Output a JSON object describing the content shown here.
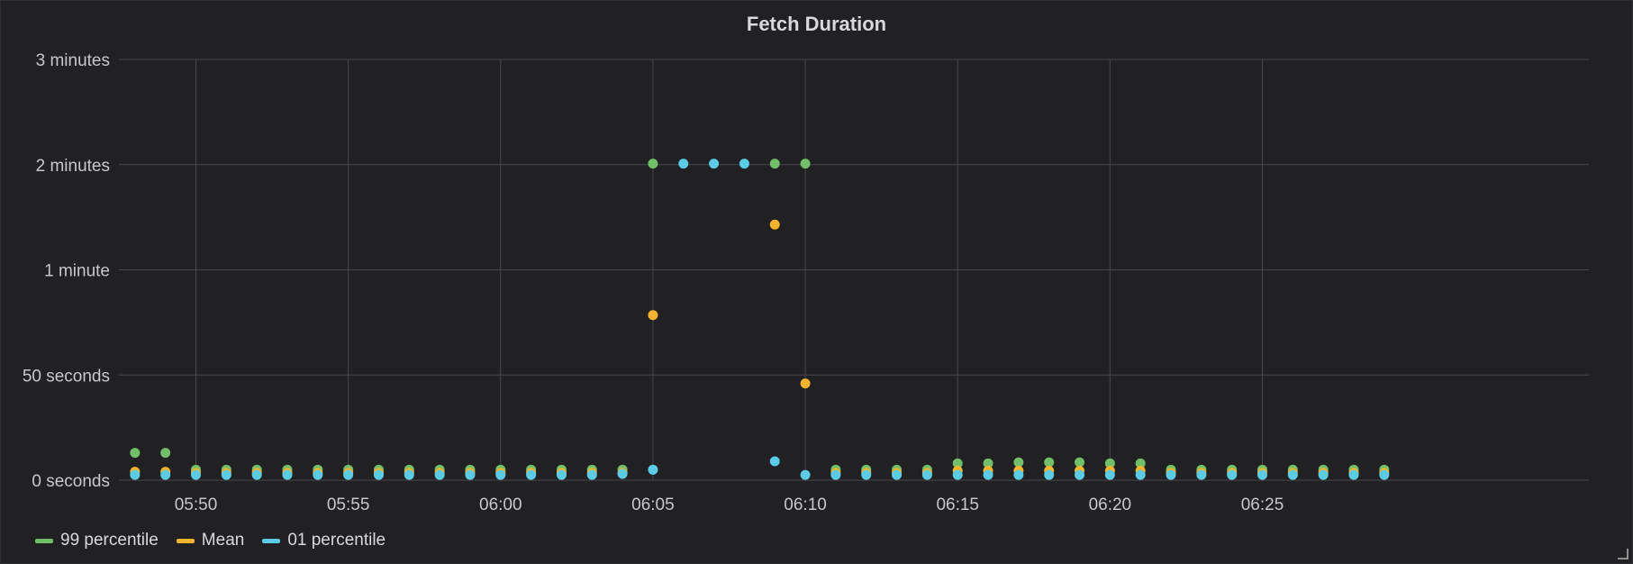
{
  "panel": {
    "title": "Fetch Duration"
  },
  "chart_data": {
    "type": "scatter",
    "title": "Fetch Duration",
    "xlabel": "",
    "ylabel": "",
    "x_tick_labels": [
      "05:50",
      "05:55",
      "06:00",
      "06:05",
      "06:10",
      "06:15",
      "06:20",
      "06:25"
    ],
    "y_tick_labels": [
      "0 seconds",
      "50 seconds",
      "1 minute",
      "2 minutes",
      "3 minutes"
    ],
    "ylim_ticks": [
      0,
      4
    ],
    "grid": true,
    "legend_position": "bottom-left",
    "x": [
      "05:48",
      "05:49",
      "05:50",
      "05:51",
      "05:52",
      "05:53",
      "05:54",
      "05:55",
      "05:56",
      "05:57",
      "05:58",
      "05:59",
      "06:00",
      "06:01",
      "06:02",
      "06:03",
      "06:04",
      "06:05",
      "06:06",
      "06:07",
      "06:08",
      "06:09",
      "06:10",
      "06:11",
      "06:12",
      "06:13",
      "06:14",
      "06:15",
      "06:16",
      "06:17",
      "06:18",
      "06:19",
      "06:20",
      "06:21",
      "06:22",
      "06:23",
      "06:24",
      "06:25",
      "06:26",
      "06:27",
      "06:28",
      "06:29"
    ],
    "series": [
      {
        "name": "99 percentile",
        "color": "#73bf69",
        "values": [
          0.26,
          0.26,
          0.1,
          0.1,
          0.1,
          0.1,
          0.1,
          0.1,
          0.1,
          0.1,
          0.1,
          0.1,
          0.1,
          0.1,
          0.1,
          0.1,
          0.1,
          3.01,
          null,
          null,
          null,
          3.01,
          3.01,
          0.1,
          0.1,
          0.1,
          0.1,
          0.16,
          0.16,
          0.17,
          0.17,
          0.17,
          0.16,
          0.16,
          0.1,
          0.1,
          0.1,
          0.1,
          0.1,
          0.1,
          0.1,
          0.1
        ]
      },
      {
        "name": "Mean",
        "color": "#f2b42f",
        "values": [
          0.08,
          0.08,
          0.07,
          0.07,
          0.07,
          0.07,
          0.07,
          0.07,
          0.07,
          0.07,
          0.07,
          0.07,
          0.07,
          0.07,
          0.07,
          0.07,
          0.07,
          1.57,
          null,
          null,
          null,
          2.43,
          0.92,
          0.07,
          0.07,
          0.07,
          0.07,
          0.09,
          0.09,
          0.09,
          0.09,
          0.09,
          0.09,
          0.09,
          0.07,
          0.07,
          0.07,
          0.07,
          0.07,
          0.07,
          0.07,
          0.07
        ]
      },
      {
        "name": "01 percentile",
        "color": "#5bcbe6",
        "values": [
          0.05,
          0.05,
          0.05,
          0.05,
          0.05,
          0.05,
          0.05,
          0.05,
          0.05,
          0.05,
          0.05,
          0.05,
          0.05,
          0.05,
          0.05,
          0.05,
          0.06,
          0.1,
          3.01,
          3.01,
          3.01,
          0.18,
          0.05,
          0.05,
          0.05,
          0.05,
          0.05,
          0.05,
          0.05,
          0.05,
          0.05,
          0.05,
          0.05,
          0.05,
          0.05,
          0.05,
          0.05,
          0.05,
          0.05,
          0.05,
          0.05,
          0.05
        ]
      }
    ]
  },
  "legend": {
    "items": [
      {
        "label": "99 percentile",
        "color": "#73bf69"
      },
      {
        "label": "Mean",
        "color": "#f2b42f"
      },
      {
        "label": "01 percentile",
        "color": "#5bcbe6"
      }
    ]
  }
}
